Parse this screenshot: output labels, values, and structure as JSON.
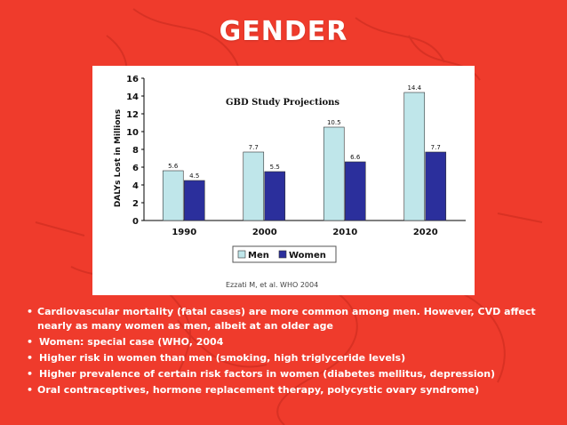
{
  "slide": {
    "title": "GENDER"
  },
  "chart_data": {
    "type": "bar",
    "title": "GBD Study Projections",
    "ylabel": "DALYs Lost in Millions",
    "xlabel": "",
    "ylim": [
      0,
      16
    ],
    "yticks": [
      0,
      2,
      4,
      6,
      8,
      10,
      12,
      14,
      16
    ],
    "categories": [
      "1990",
      "2000",
      "2010",
      "2020"
    ],
    "series": [
      {
        "name": "Men",
        "values": [
          5.6,
          7.7,
          10.5,
          14.4
        ],
        "value_labels": [
          "5.6",
          "7.7",
          "10.5",
          "14.4"
        ],
        "color": "#bfe6ea"
      },
      {
        "name": "Women",
        "values": [
          4.5,
          5.5,
          6.6,
          7.7
        ],
        "value_labels": [
          "4.5",
          "5.5",
          "6.6",
          "7.7"
        ],
        "color": "#2b2f9c"
      }
    ],
    "legend_position": "bottom-center",
    "grid": false
  },
  "citation": "Ezzati M, et al. WHO 2004",
  "bullets": [
    "Cardiovascular mortality (fatal cases) are more common among men. However, CVD affect nearly as many women as men, albeit at an older age",
    "Women: special case (WHO, 2004",
    "Higher risk in women than men (smoking, high triglyceride levels)",
    "Higher prevalence of certain risk factors in women (diabetes mellitus, depression)",
    "Oral contraceptives, hormone replacement therapy, polycystic ovary syndrome)"
  ],
  "colors": {
    "background": "#ef3b2c",
    "text": "#ffffff"
  }
}
